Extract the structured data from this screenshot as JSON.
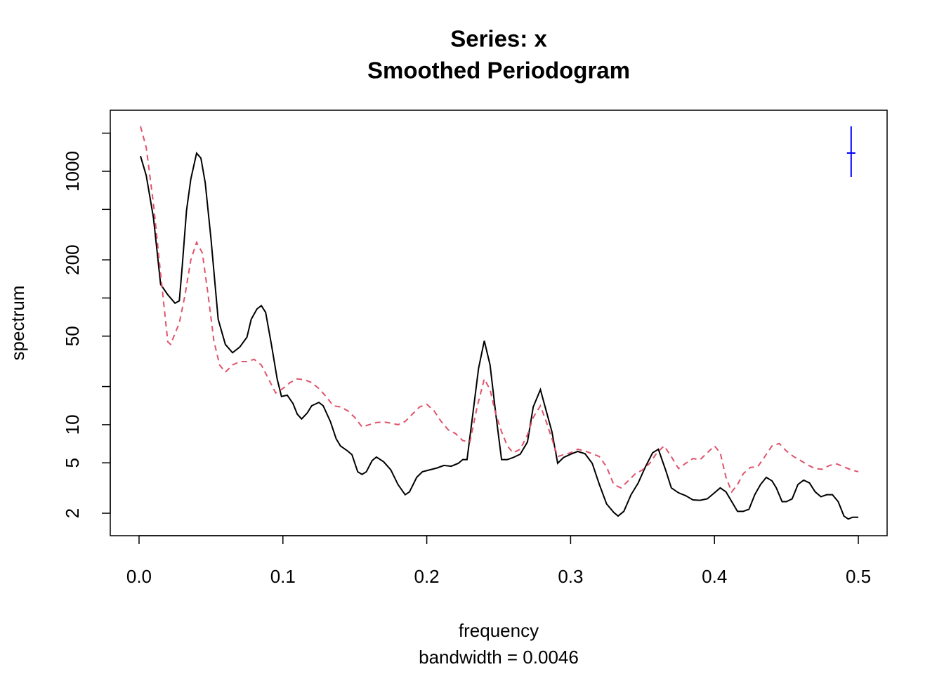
{
  "chart_data": {
    "type": "line",
    "title": "Series: x",
    "subtitle": "Smoothed Periodogram",
    "xlabel": "frequency",
    "sub": "bandwidth = 0.0046",
    "ylabel": "spectrum",
    "log_y": true,
    "xlim": [
      -0.02,
      0.52
    ],
    "ylim": [
      1.33,
      3034
    ],
    "xticks": [
      {
        "value": 0,
        "label": "0.0"
      },
      0.1,
      0.2,
      0.3,
      0.4,
      0.5
    ],
    "yticks": [
      2,
      5,
      10,
      50,
      200,
      1000
    ],
    "yminor_ticks": [
      20,
      100,
      500,
      2000
    ],
    "series": [
      {
        "color": "#000000",
        "dashed": false,
        "x": [
          0.001,
          0.005,
          0.01,
          0.015,
          0.02,
          0.025,
          0.028,
          0.03,
          0.033,
          0.036,
          0.04,
          0.043,
          0.046,
          0.05,
          0.055,
          0.06,
          0.065,
          0.07,
          0.075,
          0.078,
          0.082,
          0.085,
          0.088,
          0.092,
          0.096,
          0.099,
          0.103,
          0.107,
          0.11,
          0.113,
          0.117,
          0.12,
          0.125,
          0.128,
          0.133,
          0.137,
          0.14,
          0.145,
          0.148,
          0.152,
          0.155,
          0.158,
          0.162,
          0.165,
          0.17,
          0.175,
          0.18,
          0.185,
          0.188,
          0.193,
          0.197,
          0.202,
          0.207,
          0.212,
          0.217,
          0.222,
          0.225,
          0.228,
          0.232,
          0.236,
          0.24,
          0.244,
          0.248,
          0.252,
          0.256,
          0.26,
          0.265,
          0.27,
          0.274,
          0.279,
          0.283,
          0.287,
          0.291,
          0.295,
          0.3,
          0.305,
          0.31,
          0.315,
          0.32,
          0.325,
          0.33,
          0.333,
          0.337,
          0.342,
          0.347,
          0.352,
          0.357,
          0.361,
          0.366,
          0.37,
          0.375,
          0.38,
          0.385,
          0.39,
          0.395,
          0.4,
          0.404,
          0.408,
          0.412,
          0.416,
          0.42,
          0.424,
          0.428,
          0.432,
          0.436,
          0.44,
          0.443,
          0.447,
          0.45,
          0.454,
          0.458,
          0.462,
          0.466,
          0.47,
          0.474,
          0.478,
          0.482,
          0.486,
          0.49,
          0.493,
          0.496,
          0.5
        ],
        "values": [
          1320,
          927,
          431,
          128,
          106,
          91,
          95,
          177,
          490,
          870,
          1390,
          1270,
          813,
          294,
          68,
          43,
          37,
          41,
          49,
          68,
          82,
          87,
          77,
          43,
          23,
          16.7,
          17.1,
          14.7,
          12.1,
          11.1,
          12.4,
          14.1,
          15.0,
          14.1,
          10.6,
          7.75,
          6.8,
          6.2,
          5.8,
          4.25,
          4.05,
          4.25,
          5.2,
          5.55,
          5.1,
          4.4,
          3.37,
          2.8,
          2.95,
          3.84,
          4.25,
          4.4,
          4.55,
          4.77,
          4.7,
          4.96,
          5.3,
          5.3,
          12.1,
          27.8,
          46,
          29.6,
          12.1,
          5.3,
          5.3,
          5.5,
          5.85,
          7.3,
          13.8,
          18.9,
          12.9,
          8.8,
          4.96,
          5.5,
          5.85,
          6.15,
          5.9,
          4.96,
          3.37,
          2.37,
          2.03,
          1.9,
          2.07,
          2.8,
          3.47,
          4.65,
          6.0,
          6.4,
          4.4,
          3.17,
          2.9,
          2.75,
          2.55,
          2.53,
          2.6,
          2.9,
          3.17,
          2.95,
          2.47,
          2.07,
          2.07,
          2.15,
          2.8,
          3.37,
          3.84,
          3.6,
          3.17,
          2.47,
          2.47,
          2.6,
          3.37,
          3.65,
          3.47,
          2.95,
          2.7,
          2.8,
          2.8,
          2.47,
          1.9,
          1.8,
          1.86,
          1.86
        ]
      },
      {
        "color": "#DF536B",
        "dashed": true,
        "x": [
          0.001,
          0.005,
          0.01,
          0.015,
          0.02,
          0.022,
          0.025,
          0.028,
          0.032,
          0.036,
          0.04,
          0.044,
          0.048,
          0.052,
          0.056,
          0.06,
          0.065,
          0.07,
          0.075,
          0.08,
          0.085,
          0.09,
          0.095,
          0.1,
          0.105,
          0.11,
          0.115,
          0.12,
          0.125,
          0.13,
          0.135,
          0.14,
          0.145,
          0.15,
          0.155,
          0.16,
          0.165,
          0.17,
          0.175,
          0.18,
          0.185,
          0.19,
          0.195,
          0.2,
          0.205,
          0.21,
          0.215,
          0.22,
          0.225,
          0.23,
          0.235,
          0.24,
          0.244,
          0.248,
          0.252,
          0.256,
          0.26,
          0.265,
          0.27,
          0.274,
          0.279,
          0.283,
          0.287,
          0.291,
          0.295,
          0.3,
          0.305,
          0.31,
          0.315,
          0.32,
          0.325,
          0.33,
          0.335,
          0.34,
          0.345,
          0.35,
          0.355,
          0.36,
          0.365,
          0.37,
          0.375,
          0.38,
          0.385,
          0.39,
          0.395,
          0.4,
          0.404,
          0.408,
          0.412,
          0.416,
          0.42,
          0.425,
          0.43,
          0.435,
          0.44,
          0.445,
          0.45,
          0.455,
          0.46,
          0.465,
          0.47,
          0.475,
          0.48,
          0.485,
          0.49,
          0.495,
          0.5
        ],
        "values": [
          2265,
          1540,
          556,
          155,
          45,
          43,
          52.5,
          63.5,
          106,
          200,
          275,
          227,
          106,
          46,
          29.6,
          26,
          29.6,
          31.5,
          31.5,
          32.8,
          29.6,
          23,
          17.8,
          19.3,
          21.5,
          23,
          22.6,
          21.5,
          19.3,
          16.7,
          14.1,
          13.8,
          12.9,
          11.4,
          9.6,
          10,
          10.4,
          10.5,
          10.3,
          10,
          10.6,
          12.1,
          13.8,
          14.5,
          12.9,
          10.6,
          9.1,
          8.5,
          7.5,
          7.3,
          13.8,
          23,
          18.9,
          12.1,
          8.8,
          6.8,
          6,
          6.4,
          8.3,
          11.4,
          14.1,
          10.6,
          7.75,
          5.6,
          5.8,
          6,
          6.4,
          6.2,
          5.9,
          5.6,
          4.65,
          3.37,
          3.17,
          3.6,
          4.1,
          4.4,
          4.96,
          6,
          6.8,
          5.6,
          4.5,
          4.96,
          5.4,
          5.3,
          6,
          6.8,
          6,
          3.84,
          2.95,
          3.37,
          4.1,
          4.6,
          4.65,
          5.6,
          6.8,
          7.1,
          6.2,
          5.6,
          5.2,
          4.8,
          4.5,
          4.45,
          4.77,
          4.9,
          4.65,
          4.4,
          4.25
        ]
      }
    ],
    "ci_bar": {
      "x": 0.495,
      "center": 1393,
      "lower": 903,
      "upper": 2265,
      "color": "#0000FF"
    }
  }
}
